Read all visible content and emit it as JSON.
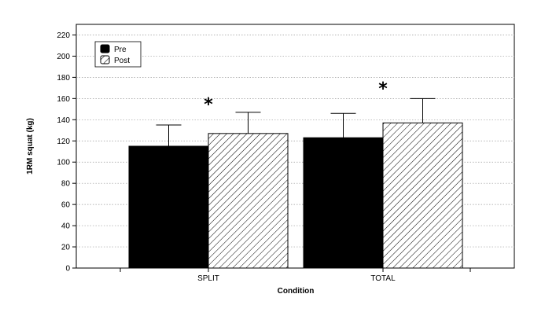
{
  "chart_data": {
    "type": "bar",
    "xlabel": "Condition",
    "ylabel": "1RM squat (kg)",
    "ylim": [
      0,
      230
    ],
    "yticks": [
      0,
      20,
      40,
      60,
      80,
      100,
      120,
      140,
      160,
      180,
      200,
      220
    ],
    "grid": "horizontal-dotted",
    "legend_position": "top-left",
    "categories": [
      "SPLIT",
      "TOTAL"
    ],
    "series": [
      {
        "name": "Pre",
        "values": [
          115,
          123
        ],
        "errors": [
          20,
          23
        ],
        "fill": "solid-black"
      },
      {
        "name": "Post",
        "values": [
          127,
          137
        ],
        "errors": [
          20,
          23
        ],
        "fill": "diagonal-hatch"
      }
    ],
    "annotations": [
      {
        "text": "*",
        "category": "SPLIT",
        "y": 158
      },
      {
        "text": "*",
        "category": "TOTAL",
        "y": 173
      }
    ]
  }
}
